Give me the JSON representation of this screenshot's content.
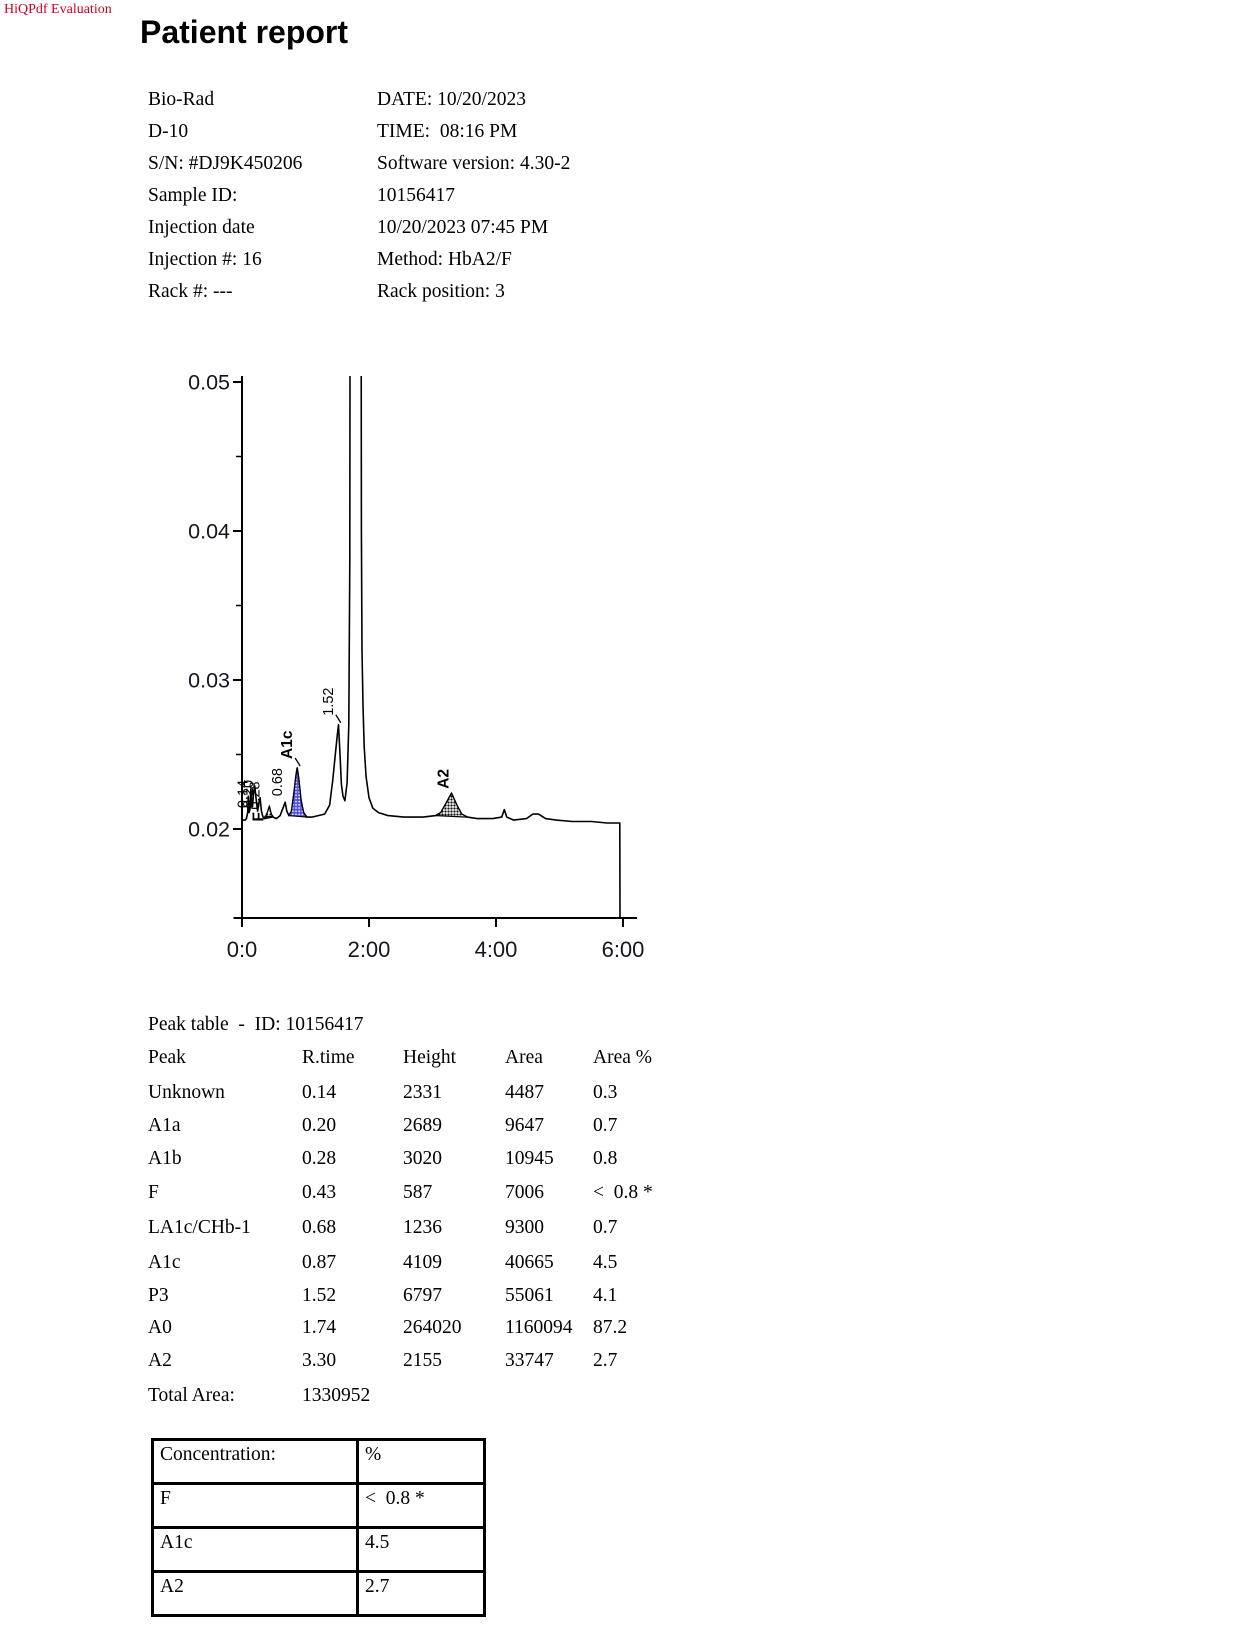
{
  "watermark": "HiQPdf Evaluation",
  "title": "Patient report",
  "info": {
    "left": [
      "Bio-Rad",
      "D-10",
      "S/N: #DJ9K450206",
      "Sample ID:",
      "Injection date",
      "Injection #: 16",
      "Rack #: ---"
    ],
    "right": [
      "DATE: 10/20/2023",
      "TIME:  08:16 PM",
      "Software version: 4.30-2",
      "10156417",
      "10/20/2023 07:45 PM",
      "Method: HbA2/F",
      "Rack position: 3"
    ]
  },
  "chart_data": {
    "type": "line",
    "title": "",
    "xlabel": "",
    "ylabel": "",
    "xlim": [
      0,
      6
    ],
    "ylim": [
      0.02,
      0.05
    ],
    "grid": false,
    "x_ticks": [
      {
        "t": 0,
        "label": "0:0"
      },
      {
        "t": 2,
        "label": "2:00"
      },
      {
        "t": 4,
        "label": "4:00"
      },
      {
        "t": 6,
        "label": "6:00"
      }
    ],
    "y_ticks": [
      {
        "v": 0.05,
        "label": "0.05"
      },
      {
        "v": 0.04,
        "label": "0.04"
      },
      {
        "v": 0.03,
        "label": "0.03"
      },
      {
        "v": 0.02,
        "label": "0.02"
      }
    ],
    "y_minor_ticks": [
      0.045,
      0.035,
      0.025
    ],
    "curve": [
      [
        0.0,
        0.0206
      ],
      [
        0.05,
        0.0206
      ],
      [
        0.07,
        0.0207
      ],
      [
        0.09,
        0.0211
      ],
      [
        0.1,
        0.0222
      ],
      [
        0.112,
        0.0211
      ],
      [
        0.125,
        0.0213
      ],
      [
        0.14,
        0.0227
      ],
      [
        0.152,
        0.0216
      ],
      [
        0.165,
        0.0215
      ],
      [
        0.18,
        0.0223
      ],
      [
        0.2,
        0.0229
      ],
      [
        0.22,
        0.0221
      ],
      [
        0.245,
        0.0212
      ],
      [
        0.268,
        0.0218
      ],
      [
        0.285,
        0.0221
      ],
      [
        0.305,
        0.0212
      ],
      [
        0.33,
        0.0208
      ],
      [
        0.36,
        0.0207
      ],
      [
        0.4,
        0.0211
      ],
      [
        0.43,
        0.0215
      ],
      [
        0.46,
        0.021
      ],
      [
        0.49,
        0.0208
      ],
      [
        0.54,
        0.0207
      ],
      [
        0.6,
        0.0209
      ],
      [
        0.645,
        0.0214
      ],
      [
        0.68,
        0.0218
      ],
      [
        0.705,
        0.0212
      ],
      [
        0.74,
        0.0209
      ],
      [
        0.78,
        0.0212
      ],
      [
        0.82,
        0.0225
      ],
      [
        0.85,
        0.0236
      ],
      [
        0.87,
        0.0241
      ],
      [
        0.893,
        0.0234
      ],
      [
        0.93,
        0.0219
      ],
      [
        0.97,
        0.0211
      ],
      [
        1.02,
        0.0208
      ],
      [
        1.1,
        0.0208
      ],
      [
        1.2,
        0.0209
      ],
      [
        1.3,
        0.021
      ],
      [
        1.38,
        0.0216
      ],
      [
        1.43,
        0.0233
      ],
      [
        1.47,
        0.025
      ],
      [
        1.5,
        0.0263
      ],
      [
        1.52,
        0.027
      ],
      [
        1.545,
        0.0249
      ],
      [
        1.565,
        0.023
      ],
      [
        1.59,
        0.0222
      ],
      [
        1.62,
        0.0219
      ],
      [
        1.655,
        0.0231
      ],
      [
        1.682,
        0.027
      ],
      [
        1.698,
        0.038
      ],
      [
        1.705,
        0.07
      ],
      [
        1.872,
        0.07
      ],
      [
        1.88,
        0.04
      ],
      [
        1.89,
        0.032
      ],
      [
        1.905,
        0.0283
      ],
      [
        1.925,
        0.0255
      ],
      [
        1.955,
        0.0235
      ],
      [
        2.0,
        0.0221
      ],
      [
        2.06,
        0.0214
      ],
      [
        2.15,
        0.0211
      ],
      [
        2.3,
        0.0209
      ],
      [
        2.55,
        0.0208
      ],
      [
        2.85,
        0.0208
      ],
      [
        3.05,
        0.0209
      ],
      [
        3.13,
        0.0211
      ],
      [
        3.21,
        0.0217
      ],
      [
        3.3,
        0.0224
      ],
      [
        3.385,
        0.0216
      ],
      [
        3.46,
        0.021
      ],
      [
        3.55,
        0.0208
      ],
      [
        3.7,
        0.0207
      ],
      [
        3.95,
        0.0207
      ],
      [
        4.09,
        0.0208
      ],
      [
        4.13,
        0.0213
      ],
      [
        4.17,
        0.0208
      ],
      [
        4.28,
        0.0206
      ],
      [
        4.48,
        0.0207
      ],
      [
        4.58,
        0.021
      ],
      [
        4.67,
        0.021
      ],
      [
        4.78,
        0.0207
      ],
      [
        4.95,
        0.0206
      ],
      [
        5.2,
        0.0205
      ],
      [
        5.5,
        0.0205
      ],
      [
        5.75,
        0.0204
      ],
      [
        5.95,
        0.0204
      ]
    ],
    "fills": [
      {
        "name": "F",
        "t0": 0.36,
        "t1": 0.49,
        "pattern": "gray"
      },
      {
        "name": "A1c",
        "t0": 0.74,
        "t1": 1.02,
        "pattern": "blue"
      },
      {
        "name": "A2",
        "t0": 3.05,
        "t1": 3.55,
        "pattern": "dark"
      }
    ],
    "annotations": [
      {
        "text": "0.14",
        "rt": 0.085,
        "v": 0.0214,
        "bold": false,
        "leader": "none"
      },
      {
        "text": "0.20",
        "rt": 0.175,
        "v": 0.0214,
        "bold": false,
        "leader": "none"
      },
      {
        "text": "0.28",
        "rt": 0.275,
        "v": 0.0213,
        "bold": false,
        "leader": "none"
      },
      {
        "text": "F",
        "rt": 0.335,
        "v": 0.0205,
        "bold": true,
        "leader": "h"
      },
      {
        "text": "0.68",
        "rt": 0.63,
        "v": 0.0222,
        "bold": false,
        "leader": "none"
      },
      {
        "text": "A1c",
        "rt": 0.79,
        "v": 0.0247,
        "bold": true,
        "leader": "diag"
      },
      {
        "text": "1.52",
        "rt": 1.43,
        "v": 0.0276,
        "bold": false,
        "leader": "diag"
      },
      {
        "text": "A2",
        "rt": 3.25,
        "v": 0.0227,
        "bold": true,
        "leader": "none"
      }
    ]
  },
  "peak_table": {
    "heading": "Peak table  -  ID: 10156417",
    "columns": [
      "Peak",
      "R.time",
      "Height",
      "Area",
      "Area %"
    ],
    "rows": [
      [
        "Unknown",
        "0.14",
        "2331",
        "4487",
        "0.3"
      ],
      [
        "A1a",
        "0.20",
        "2689",
        "9647",
        "0.7"
      ],
      [
        "A1b",
        "0.28",
        "3020",
        "10945",
        "0.8"
      ],
      [
        "F",
        "0.43",
        "587",
        "7006",
        "<  0.8 *"
      ],
      [
        "LA1c/CHb-1",
        "0.68",
        "1236",
        "9300",
        "0.7"
      ],
      [
        "A1c",
        "0.87",
        "4109",
        "40665",
        "4.5"
      ],
      [
        "P3",
        "1.52",
        "6797",
        "55061",
        "4.1"
      ],
      [
        "A0",
        "1.74",
        "264020",
        "1160094",
        "87.2"
      ],
      [
        "A2",
        "3.30",
        "2155",
        "33747",
        "2.7"
      ]
    ],
    "total_label": "Total Area:",
    "total_value": "1330952"
  },
  "concentration_table": {
    "rows": [
      [
        "Concentration:",
        "%"
      ],
      [
        "F",
        "<  0.8 *"
      ],
      [
        "A1c",
        "4.5"
      ],
      [
        "A2",
        "2.7"
      ]
    ]
  },
  "colors": {
    "watermark_red": "#cc0022",
    "a1c_fill_blue": "#5353e4",
    "curve_black": "#000000",
    "tick_text": "#15151f"
  }
}
